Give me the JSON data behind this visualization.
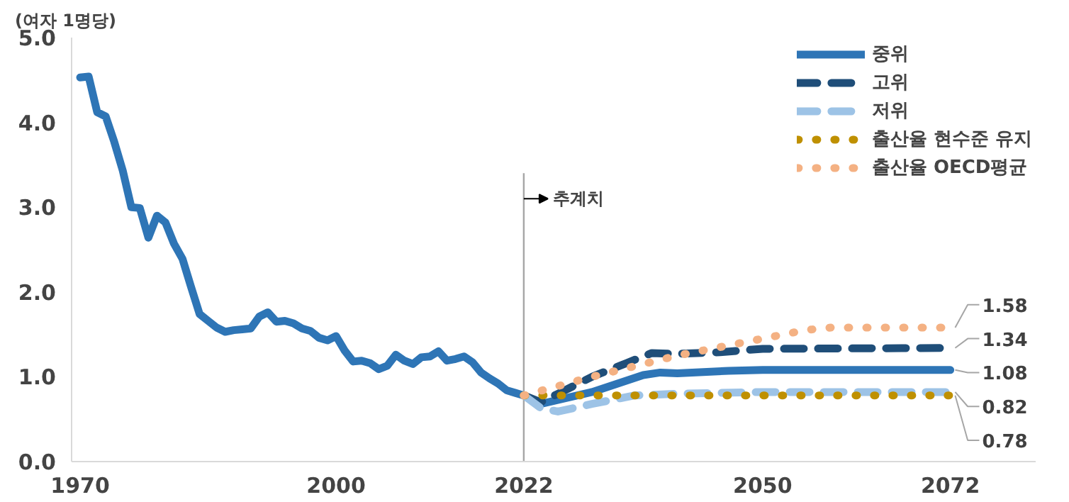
{
  "chart_data": {
    "type": "line",
    "ylabel": "(여자 1명당)",
    "xlim": [
      1969,
      2082
    ],
    "ylim": [
      0,
      5
    ],
    "xticks": [
      1970,
      2000,
      2022,
      2050,
      2072
    ],
    "yticks": [
      {
        "value": 0,
        "label": "0.0"
      },
      {
        "value": 1,
        "label": "1.0"
      },
      {
        "value": 2,
        "label": "2.0"
      },
      {
        "value": 3,
        "label": "3.0"
      },
      {
        "value": 4,
        "label": "4.0"
      },
      {
        "value": 5,
        "label": "5.0"
      }
    ],
    "grid": false,
    "legend": "top right",
    "marker": "none",
    "series": [
      {
        "name": "중위",
        "color": "#2e75b6",
        "line_style": "solid",
        "x": [
          1970,
          1971,
          1972,
          1973,
          1974,
          1975,
          1976,
          1977,
          1978,
          1979,
          1980,
          1981,
          1982,
          1983,
          1984,
          1985,
          1986,
          1987,
          1988,
          1989,
          1990,
          1991,
          1992,
          1993,
          1994,
          1995,
          1996,
          1997,
          1998,
          1999,
          2000,
          2001,
          2002,
          2003,
          2004,
          2005,
          2006,
          2007,
          2008,
          2009,
          2010,
          2011,
          2012,
          2013,
          2014,
          2015,
          2016,
          2017,
          2018,
          2019,
          2020,
          2021,
          2022,
          2024,
          2030,
          2036,
          2038,
          2040,
          2046,
          2050,
          2072
        ],
        "value_labels": [
          null,
          null,
          null,
          null,
          null,
          null,
          null,
          null,
          null,
          null,
          null,
          null,
          null,
          null,
          null,
          null,
          null,
          null,
          null,
          null,
          null,
          null,
          null,
          null,
          null,
          null,
          null,
          null,
          null,
          null,
          null,
          null,
          null,
          null,
          null,
          null,
          null,
          null,
          null,
          null,
          null,
          null,
          null,
          null,
          null,
          null,
          null,
          null,
          null,
          null,
          null,
          null,
          null,
          null,
          null,
          null,
          null,
          null,
          null,
          null,
          "1.08"
        ],
        "values": [
          4.53,
          4.54,
          4.12,
          4.07,
          3.77,
          3.43,
          3.0,
          2.99,
          2.64,
          2.9,
          2.82,
          2.57,
          2.39,
          2.06,
          1.74,
          1.66,
          1.58,
          1.53,
          1.55,
          1.56,
          1.57,
          1.71,
          1.76,
          1.65,
          1.66,
          1.63,
          1.57,
          1.54,
          1.46,
          1.43,
          1.48,
          1.31,
          1.18,
          1.19,
          1.16,
          1.09,
          1.13,
          1.26,
          1.19,
          1.15,
          1.23,
          1.24,
          1.3,
          1.19,
          1.21,
          1.24,
          1.17,
          1.05,
          0.98,
          0.92,
          0.84,
          0.81,
          0.78,
          0.68,
          0.82,
          1.02,
          1.05,
          1.04,
          1.07,
          1.08,
          1.08
        ]
      },
      {
        "name": "고위",
        "color": "#1f4e79",
        "line_style": "dashed",
        "x": [
          2022,
          2024,
          2026,
          2030,
          2034,
          2037,
          2040,
          2045,
          2050,
          2072
        ],
        "values": [
          0.78,
          0.7,
          0.8,
          1.0,
          1.16,
          1.28,
          1.27,
          1.29,
          1.33,
          1.34
        ],
        "value_labels": [
          null,
          null,
          null,
          null,
          null,
          null,
          null,
          null,
          null,
          "1.34"
        ]
      },
      {
        "name": "저위",
        "color": "#9dc3e6",
        "line_style": "dashed",
        "x": [
          2022,
          2024,
          2026,
          2030,
          2035,
          2040,
          2050,
          2072
        ],
        "values": [
          0.78,
          0.63,
          0.59,
          0.68,
          0.78,
          0.8,
          0.82,
          0.82
        ],
        "value_labels": [
          null,
          null,
          null,
          null,
          null,
          null,
          null,
          "0.82"
        ]
      },
      {
        "name": "출산율 현수준 유지",
        "color": "#bf9000",
        "line_style": "dotted",
        "x": [
          2022,
          2072
        ],
        "values": [
          0.78,
          0.78
        ],
        "value_labels": [
          null,
          "0.78"
        ]
      },
      {
        "name": "출산율 OECD평균",
        "color": "#f4b183",
        "line_style": "dotted",
        "x": [
          2022,
          2030,
          2040,
          2050,
          2055,
          2058,
          2072
        ],
        "values": [
          0.78,
          1.0,
          1.25,
          1.45,
          1.55,
          1.58,
          1.58
        ],
        "value_labels": [
          null,
          null,
          null,
          null,
          null,
          null,
          "1.58"
        ]
      }
    ],
    "ref_lines": [
      {
        "axis": "x",
        "value": 2022,
        "label": "추계치",
        "color": "#a6a6a6"
      }
    ]
  }
}
